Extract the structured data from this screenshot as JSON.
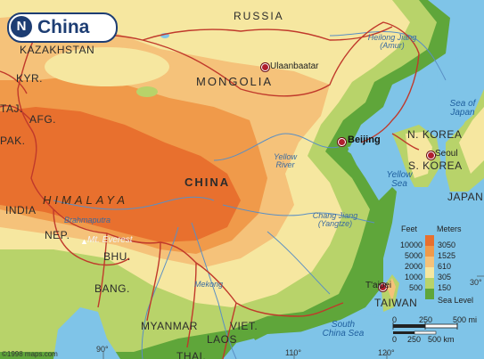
{
  "title": {
    "badge": "N",
    "text": "China"
  },
  "colors": {
    "sea": "#7fc4e8",
    "lowland": "#5fa63a",
    "low": "#b8d36a",
    "mid": "#f6e7a0",
    "upper": "#f5c27a",
    "high": "#f09a4a",
    "peak": "#e8702e",
    "border": "#c0392b",
    "river": "#5a8fc4"
  },
  "countries": {
    "russia": "RUSSIA",
    "kazakhstan": "KAZAKHSTAN",
    "mongolia": "MONGOLIA",
    "kyr": "KYR.",
    "taj": "TAJ.",
    "afg": "AFG.",
    "pak": "PAK.",
    "china": "CHINA",
    "india": "INDIA",
    "nep": "NEP.",
    "bhu": "BHU.",
    "bang": "BANG.",
    "myanmar": "MYANMAR",
    "laos": "LAOS",
    "viet": "VIET.",
    "thai": "THAI.",
    "nkorea": "N. KOREA",
    "skorea": "S. KOREA",
    "japan": "JAPAN",
    "taiwan": "TAIWAN"
  },
  "water": {
    "sea_of_japan": "Sea of Japan",
    "yellow_sea": "Yellow Sea",
    "south_china_sea": "South China Sea"
  },
  "rivers": {
    "heilong": "Heilong Jiang (Amur)",
    "yellow": "Yellow River",
    "chang": "Chang Jiang (Yangtze)",
    "brahmaputra": "Brahmaputra",
    "mekong": "Mekong"
  },
  "cities": {
    "ulaanbaatar": "Ulaanbaatar",
    "beijing": "Beijing",
    "seoul": "Seoul",
    "taipei": "T'aipei"
  },
  "features": {
    "himalaya": "HIMALAYA",
    "everest": "Mt. Everest"
  },
  "graticule": {
    "lon90": "90°",
    "lon110": "110°",
    "lon120": "120°",
    "lat30": "30°"
  },
  "legend": {
    "feet_header": "Feet",
    "meters_header": "Meters",
    "rows": [
      {
        "feet": "10000",
        "meters": "3050",
        "color": "#e8702e"
      },
      {
        "feet": "5000",
        "meters": "1525",
        "color": "#f09a4a"
      },
      {
        "feet": "2000",
        "meters": "610",
        "color": "#f5c27a"
      },
      {
        "feet": "1000",
        "meters": "305",
        "color": "#f6e7a0"
      },
      {
        "feet": "500",
        "meters": "150",
        "color": "#b8d36a"
      },
      {
        "feet": "",
        "meters": "Sea Level",
        "color": "#5fa63a"
      }
    ]
  },
  "scale": {
    "mi_labels": [
      "0",
      "250",
      "500 mi"
    ],
    "km_labels": [
      "0",
      "250",
      "500 km"
    ]
  },
  "copyright": "©1998 maps.com"
}
